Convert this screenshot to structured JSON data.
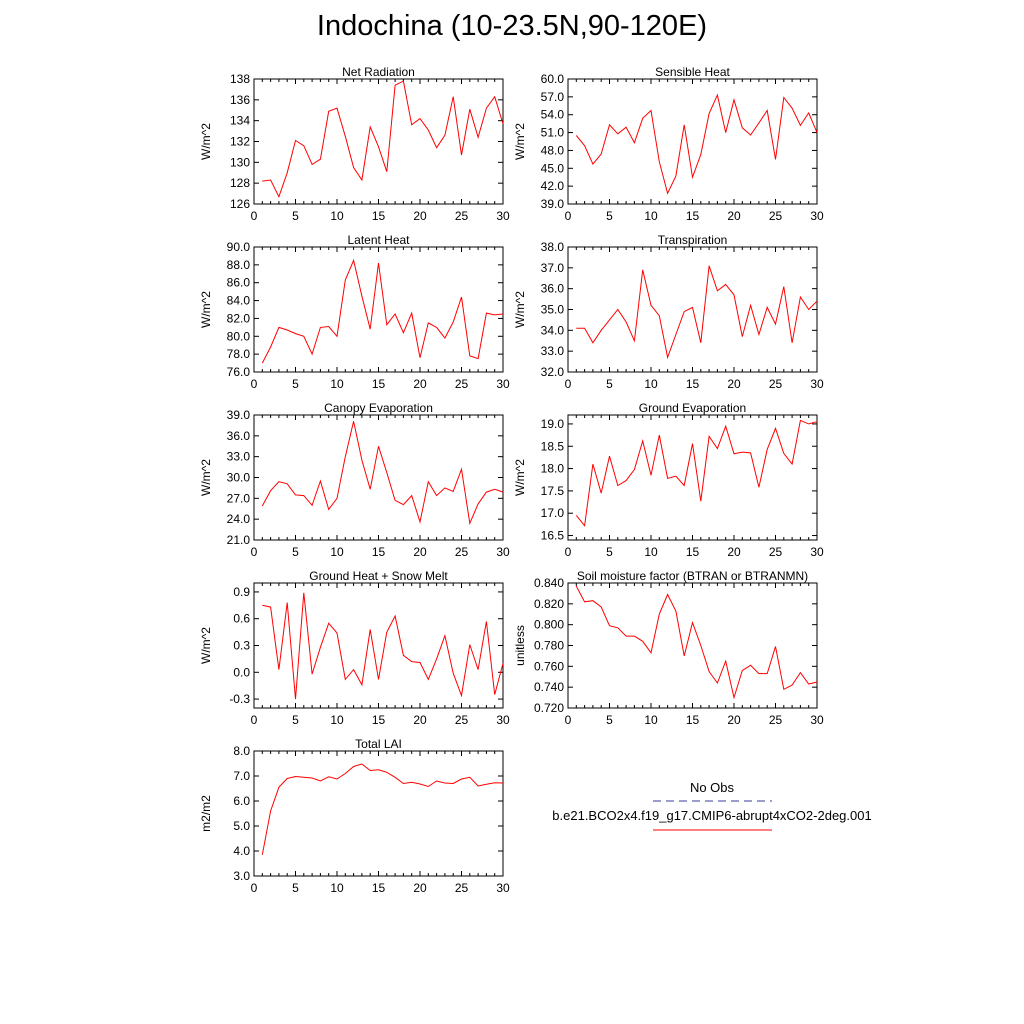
{
  "title": "Indochina (10-23.5N,90-120E)",
  "legend": {
    "obs_label": "No Obs",
    "obs_color": "#3b3b9a",
    "case_label": "b.e21.BCO2x4.f19_g17.CMIP6-abrupt4xCO2-2deg.001",
    "case_color": "#ff0000"
  },
  "line_color": "#ff0000",
  "chart_data": [
    {
      "type": "line",
      "title": "Net Radiation",
      "ylabel": "W/m^2",
      "xlabel": "",
      "xlim": [
        0,
        30
      ],
      "ylim": [
        126,
        138
      ],
      "xticks": [
        "0",
        "5",
        "10",
        "15",
        "20",
        "25",
        "30"
      ],
      "yticks": [
        "126",
        "128",
        "130",
        "132",
        "134",
        "136",
        "138"
      ],
      "x": [
        1,
        2,
        3,
        4,
        5,
        6,
        7,
        8,
        9,
        10,
        11,
        12,
        13,
        14,
        15,
        16,
        17,
        18,
        19,
        20,
        21,
        22,
        23,
        24,
        25,
        26,
        27,
        28,
        29,
        30
      ],
      "values": [
        128.2,
        128.3,
        126.7,
        129.0,
        132.1,
        131.6,
        129.8,
        130.3,
        134.9,
        135.2,
        132.5,
        129.5,
        128.3,
        133.4,
        131.5,
        129.1,
        137.4,
        137.8,
        133.6,
        134.2,
        133.1,
        131.4,
        132.6,
        136.3,
        130.7,
        135.1,
        132.4,
        135.2,
        136.3,
        133.7
      ]
    },
    {
      "type": "line",
      "title": "Sensible Heat",
      "ylabel": "W/m^2",
      "xlabel": "",
      "xlim": [
        0,
        30
      ],
      "ylim": [
        39,
        60
      ],
      "xticks": [
        "0",
        "5",
        "10",
        "15",
        "20",
        "25",
        "30"
      ],
      "yticks": [
        "39.0",
        "42.0",
        "45.0",
        "48.0",
        "51.0",
        "54.0",
        "57.0",
        "60.0"
      ],
      "x": [
        1,
        2,
        3,
        4,
        5,
        6,
        7,
        8,
        9,
        10,
        11,
        12,
        13,
        14,
        15,
        16,
        17,
        18,
        19,
        20,
        21,
        22,
        23,
        24,
        25,
        26,
        27,
        28,
        29,
        30
      ],
      "values": [
        50.5,
        48.8,
        45.7,
        47.4,
        52.3,
        50.8,
        51.9,
        49.3,
        53.4,
        54.7,
        46.1,
        40.8,
        43.7,
        52.3,
        43.5,
        47.3,
        54.2,
        57.3,
        51.0,
        56.5,
        51.8,
        50.6,
        52.6,
        54.7,
        46.5,
        56.9,
        55.1,
        52.2,
        54.3,
        51.0
      ]
    },
    {
      "type": "line",
      "title": "Latent Heat",
      "ylabel": "W/m^2",
      "xlabel": "",
      "xlim": [
        0,
        30
      ],
      "ylim": [
        76,
        90
      ],
      "xticks": [
        "0",
        "5",
        "10",
        "15",
        "20",
        "25",
        "30"
      ],
      "yticks": [
        "76.0",
        "78.0",
        "80.0",
        "82.0",
        "84.0",
        "86.0",
        "88.0",
        "90.0"
      ],
      "x": [
        1,
        2,
        3,
        4,
        5,
        6,
        7,
        8,
        9,
        10,
        11,
        12,
        13,
        14,
        15,
        16,
        17,
        18,
        19,
        20,
        21,
        22,
        23,
        24,
        25,
        26,
        27,
        28,
        29,
        30
      ],
      "values": [
        77.0,
        78.8,
        81.0,
        80.7,
        80.3,
        80.0,
        78.0,
        81.0,
        81.1,
        80.0,
        86.3,
        88.5,
        84.5,
        80.8,
        88.2,
        81.3,
        82.5,
        80.4,
        82.6,
        77.6,
        81.5,
        81.0,
        79.8,
        81.6,
        84.4,
        77.8,
        77.5,
        82.6,
        82.4,
        82.5
      ]
    },
    {
      "type": "line",
      "title": "Transpiration",
      "ylabel": "W/m^2",
      "xlabel": "",
      "xlim": [
        0,
        30
      ],
      "ylim": [
        32,
        38
      ],
      "xticks": [
        "0",
        "5",
        "10",
        "15",
        "20",
        "25",
        "30"
      ],
      "yticks": [
        "32.0",
        "33.0",
        "34.0",
        "35.0",
        "36.0",
        "37.0",
        "38.0"
      ],
      "x": [
        1,
        2,
        3,
        4,
        5,
        6,
        7,
        8,
        9,
        10,
        11,
        12,
        13,
        14,
        15,
        16,
        17,
        18,
        19,
        20,
        21,
        22,
        23,
        24,
        25,
        26,
        27,
        28,
        29,
        30
      ],
      "values": [
        34.1,
        34.1,
        33.4,
        34.0,
        34.5,
        35.0,
        34.4,
        33.5,
        36.9,
        35.2,
        34.7,
        32.7,
        33.8,
        34.9,
        35.1,
        33.4,
        37.1,
        35.9,
        36.2,
        35.7,
        33.7,
        35.2,
        33.8,
        35.1,
        34.3,
        36.1,
        33.4,
        35.6,
        35.0,
        35.4
      ]
    },
    {
      "type": "line",
      "title": "Canopy Evaporation",
      "ylabel": "W/m^2",
      "xlabel": "",
      "xlim": [
        0,
        30
      ],
      "ylim": [
        21,
        39
      ],
      "xticks": [
        "0",
        "5",
        "10",
        "15",
        "20",
        "25",
        "30"
      ],
      "yticks": [
        "21.0",
        "24.0",
        "27.0",
        "30.0",
        "33.0",
        "36.0",
        "39.0"
      ],
      "x": [
        1,
        2,
        3,
        4,
        5,
        6,
        7,
        8,
        9,
        10,
        11,
        12,
        13,
        14,
        15,
        16,
        17,
        18,
        19,
        20,
        21,
        22,
        23,
        24,
        25,
        26,
        27,
        28,
        29,
        30
      ],
      "values": [
        25.9,
        28.1,
        29.4,
        29.1,
        27.5,
        27.4,
        26.0,
        29.5,
        25.4,
        27.0,
        33.0,
        38.1,
        32.5,
        28.3,
        34.5,
        30.7,
        26.7,
        26.1,
        27.4,
        23.6,
        29.4,
        27.4,
        28.5,
        28.0,
        31.2,
        23.4,
        26.2,
        27.9,
        28.3,
        27.9
      ]
    },
    {
      "type": "line",
      "title": "Ground Evaporation",
      "ylabel": "W/m^2",
      "xlabel": "",
      "xlim": [
        0,
        30
      ],
      "ylim": [
        16.4,
        19.2
      ],
      "xticks": [
        "0",
        "5",
        "10",
        "15",
        "20",
        "25",
        "30"
      ],
      "yticks": [
        "16.5",
        "17.0",
        "17.5",
        "18.0",
        "18.5",
        "19.0"
      ],
      "x": [
        1,
        2,
        3,
        4,
        5,
        6,
        7,
        8,
        9,
        10,
        11,
        12,
        13,
        14,
        15,
        16,
        17,
        18,
        19,
        20,
        21,
        22,
        23,
        24,
        25,
        26,
        27,
        28,
        29,
        30
      ],
      "values": [
        16.95,
        16.72,
        18.1,
        17.45,
        18.28,
        17.62,
        17.73,
        17.98,
        18.62,
        17.85,
        18.75,
        17.78,
        17.83,
        17.62,
        18.56,
        17.27,
        18.72,
        18.45,
        18.95,
        18.33,
        18.37,
        18.35,
        17.58,
        18.43,
        18.9,
        18.34,
        18.1,
        19.08,
        19.0,
        19.05
      ]
    },
    {
      "type": "line",
      "title": "Ground Heat + Snow Melt",
      "ylabel": "W/m^2",
      "xlabel": "",
      "xlim": [
        0,
        30
      ],
      "ylim": [
        -0.4,
        1.0
      ],
      "xticks": [
        "0",
        "5",
        "10",
        "15",
        "20",
        "25",
        "30"
      ],
      "yticks": [
        "-0.3",
        "0.0",
        "0.3",
        "0.6",
        "0.9"
      ],
      "ytick_values": [
        -0.3,
        0.0,
        0.3,
        0.6,
        0.9
      ],
      "x": [
        1,
        2,
        3,
        4,
        5,
        6,
        7,
        8,
        9,
        10,
        11,
        12,
        13,
        14,
        15,
        16,
        17,
        18,
        19,
        20,
        21,
        22,
        23,
        24,
        25,
        26,
        27,
        28,
        29,
        30
      ],
      "values": [
        0.75,
        0.73,
        0.03,
        0.78,
        -0.3,
        0.89,
        -0.02,
        0.28,
        0.55,
        0.44,
        -0.08,
        0.03,
        -0.14,
        0.48,
        -0.08,
        0.45,
        0.63,
        0.19,
        0.12,
        0.11,
        -0.08,
        0.15,
        0.41,
        -0.01,
        -0.26,
        0.31,
        0.03,
        0.57,
        -0.25,
        0.1
      ]
    },
    {
      "type": "line",
      "title": "Soil moisture factor (BTRAN or BTRANMN)",
      "ylabel": "unitless",
      "xlabel": "",
      "xlim": [
        0,
        30
      ],
      "ylim": [
        0.72,
        0.84
      ],
      "xticks": [
        "0",
        "5",
        "10",
        "15",
        "20",
        "25",
        "30"
      ],
      "yticks": [
        "0.720",
        "0.740",
        "0.760",
        "0.780",
        "0.800",
        "0.820",
        "0.840"
      ],
      "x": [
        1,
        2,
        3,
        4,
        5,
        6,
        7,
        8,
        9,
        10,
        11,
        12,
        13,
        14,
        15,
        16,
        17,
        18,
        19,
        20,
        21,
        22,
        23,
        24,
        25,
        26,
        27,
        28,
        29,
        30
      ],
      "values": [
        0.837,
        0.822,
        0.823,
        0.817,
        0.799,
        0.797,
        0.789,
        0.789,
        0.784,
        0.773,
        0.81,
        0.829,
        0.813,
        0.77,
        0.802,
        0.78,
        0.755,
        0.744,
        0.765,
        0.73,
        0.756,
        0.761,
        0.753,
        0.753,
        0.779,
        0.738,
        0.742,
        0.754,
        0.743,
        0.745
      ]
    },
    {
      "type": "line",
      "title": "Total LAI",
      "ylabel": "m2/m2",
      "xlabel": "",
      "xlim": [
        0,
        30
      ],
      "ylim": [
        3.0,
        8.0
      ],
      "xticks": [
        "0",
        "5",
        "10",
        "15",
        "20",
        "25",
        "30"
      ],
      "yticks": [
        "3.0",
        "4.0",
        "5.0",
        "6.0",
        "7.0",
        "8.0"
      ],
      "x": [
        1,
        2,
        3,
        4,
        5,
        6,
        7,
        8,
        9,
        10,
        11,
        12,
        13,
        14,
        15,
        16,
        17,
        18,
        19,
        20,
        21,
        22,
        23,
        24,
        25,
        26,
        27,
        28,
        29,
        30
      ],
      "values": [
        3.85,
        5.6,
        6.55,
        6.9,
        6.98,
        6.95,
        6.92,
        6.8,
        6.97,
        6.88,
        7.1,
        7.38,
        7.48,
        7.22,
        7.25,
        7.15,
        6.95,
        6.7,
        6.75,
        6.68,
        6.58,
        6.8,
        6.72,
        6.7,
        6.88,
        6.95,
        6.6,
        6.67,
        6.73,
        6.72
      ]
    }
  ]
}
